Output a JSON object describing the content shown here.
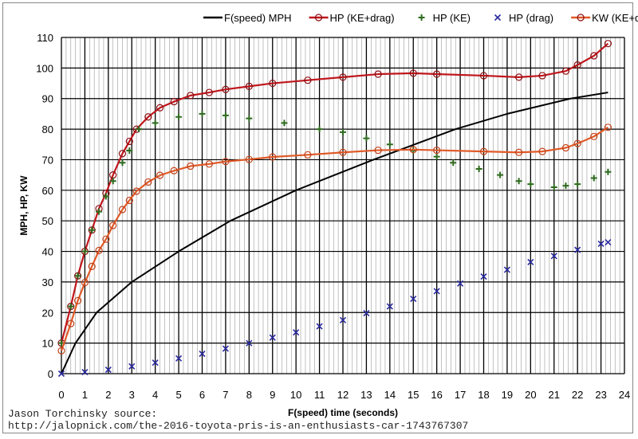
{
  "chart_data": {
    "type": "line",
    "xlabel": "F(speed) time (seconds)",
    "ylabel": "MPH, HP, KW",
    "xlim": [
      0,
      24
    ],
    "ylim": [
      0,
      110
    ],
    "xticks": [
      "0",
      "1",
      "2",
      "3",
      "4",
      "5",
      "6",
      "7",
      "8",
      "9",
      "10",
      "11",
      "12",
      "13",
      "14",
      "15",
      "16",
      "17",
      "18",
      "19",
      "20",
      "21",
      "22",
      "23",
      "24"
    ],
    "yticks": [
      "0",
      "10",
      "20",
      "30",
      "40",
      "50",
      "60",
      "70",
      "80",
      "90",
      "100",
      "110"
    ],
    "grid": true,
    "legend_position": "top",
    "series": [
      {
        "name": "F(speed) MPH",
        "color": "#000000",
        "marker": "none",
        "x": [
          0,
          0.6,
          1.5,
          3,
          5,
          7.2,
          10,
          13.3,
          16.8,
          19,
          21.7,
          23.3
        ],
        "y": [
          0,
          10,
          20,
          30,
          40,
          50,
          60,
          70,
          80,
          85,
          90,
          92
        ]
      },
      {
        "name": "HP (KE+drag)",
        "color": "#c0161c",
        "marker": "circle",
        "x": [
          0,
          0.4,
          0.7,
          1,
          1.3,
          1.6,
          1.9,
          2.2,
          2.6,
          2.9,
          3.2,
          3.7,
          4.2,
          4.8,
          5.5,
          6.3,
          7,
          8,
          9,
          10.5,
          12,
          13.5,
          15,
          16,
          18,
          19.5,
          20.5,
          21.5,
          22,
          22.7,
          23.3
        ],
        "y": [
          10,
          22,
          32,
          40,
          47,
          54,
          59,
          65,
          72,
          76,
          80,
          84,
          87,
          89,
          91,
          92,
          93,
          94,
          95,
          96,
          97,
          98,
          98.3,
          98,
          97.5,
          97,
          97.5,
          99,
          101,
          104,
          108
        ]
      },
      {
        "name": "HP (KE)",
        "color": "#2e6b1e",
        "marker": "plus",
        "x": [
          0,
          0.4,
          0.7,
          1,
          1.3,
          1.6,
          1.9,
          2.2,
          2.6,
          2.9,
          3.3,
          4,
          5,
          6,
          7,
          8,
          9.5,
          11,
          12,
          13,
          14,
          15,
          16,
          16.7,
          17.8,
          18.7,
          19.5,
          20,
          21,
          21.5,
          22,
          22.7,
          23.3
        ],
        "y": [
          10,
          22,
          32,
          40,
          47,
          53,
          58,
          63,
          69,
          73,
          80,
          82,
          84,
          85,
          84.5,
          83.5,
          82,
          80,
          79,
          77,
          75,
          73,
          71,
          69,
          67,
          65,
          63,
          62,
          61,
          61.5,
          62,
          64,
          66
        ]
      },
      {
        "name": "HP (drag)",
        "color": "#2a2aa0",
        "marker": "x",
        "x": [
          0,
          1,
          2,
          3,
          4,
          5,
          6,
          7,
          8,
          9,
          10,
          11,
          12,
          13,
          14,
          15,
          16,
          17,
          18,
          19,
          20,
          21,
          22,
          23,
          23.3
        ],
        "y": [
          0,
          0.5,
          1.3,
          2.4,
          3.6,
          5,
          6.5,
          8.2,
          10,
          11.8,
          13.5,
          15.5,
          17.5,
          19.8,
          22,
          24.5,
          27,
          29.5,
          31.8,
          34,
          36.5,
          38.5,
          40.5,
          42.5,
          43
        ]
      },
      {
        "name": "KW (KE+drag)",
        "color": "#e05a28",
        "marker": "circle",
        "x": [
          0,
          0.4,
          0.7,
          1,
          1.3,
          1.6,
          1.9,
          2.2,
          2.6,
          2.9,
          3.2,
          3.7,
          4.2,
          4.8,
          5.5,
          6.3,
          7,
          8,
          9,
          10.5,
          12,
          13.5,
          15,
          16,
          18,
          19.5,
          20.5,
          21.5,
          22,
          22.7,
          23.3
        ],
        "y": [
          7.5,
          16.4,
          23.9,
          29.8,
          35.1,
          40.3,
          44,
          48.5,
          53.7,
          56.7,
          59.7,
          62.7,
          64.9,
          66.4,
          67.9,
          68.6,
          69.4,
          70.1,
          70.9,
          71.6,
          72.4,
          73.1,
          73.3,
          73.1,
          72.7,
          72.4,
          72.7,
          73.9,
          75.3,
          77.6,
          80.6
        ]
      }
    ]
  },
  "source": {
    "line1": "Jason Torchinsky source:",
    "line2": "http://jalopnick.com/the-2016-toyota-pris-is-an-enthusiasts-car-1743767307"
  }
}
